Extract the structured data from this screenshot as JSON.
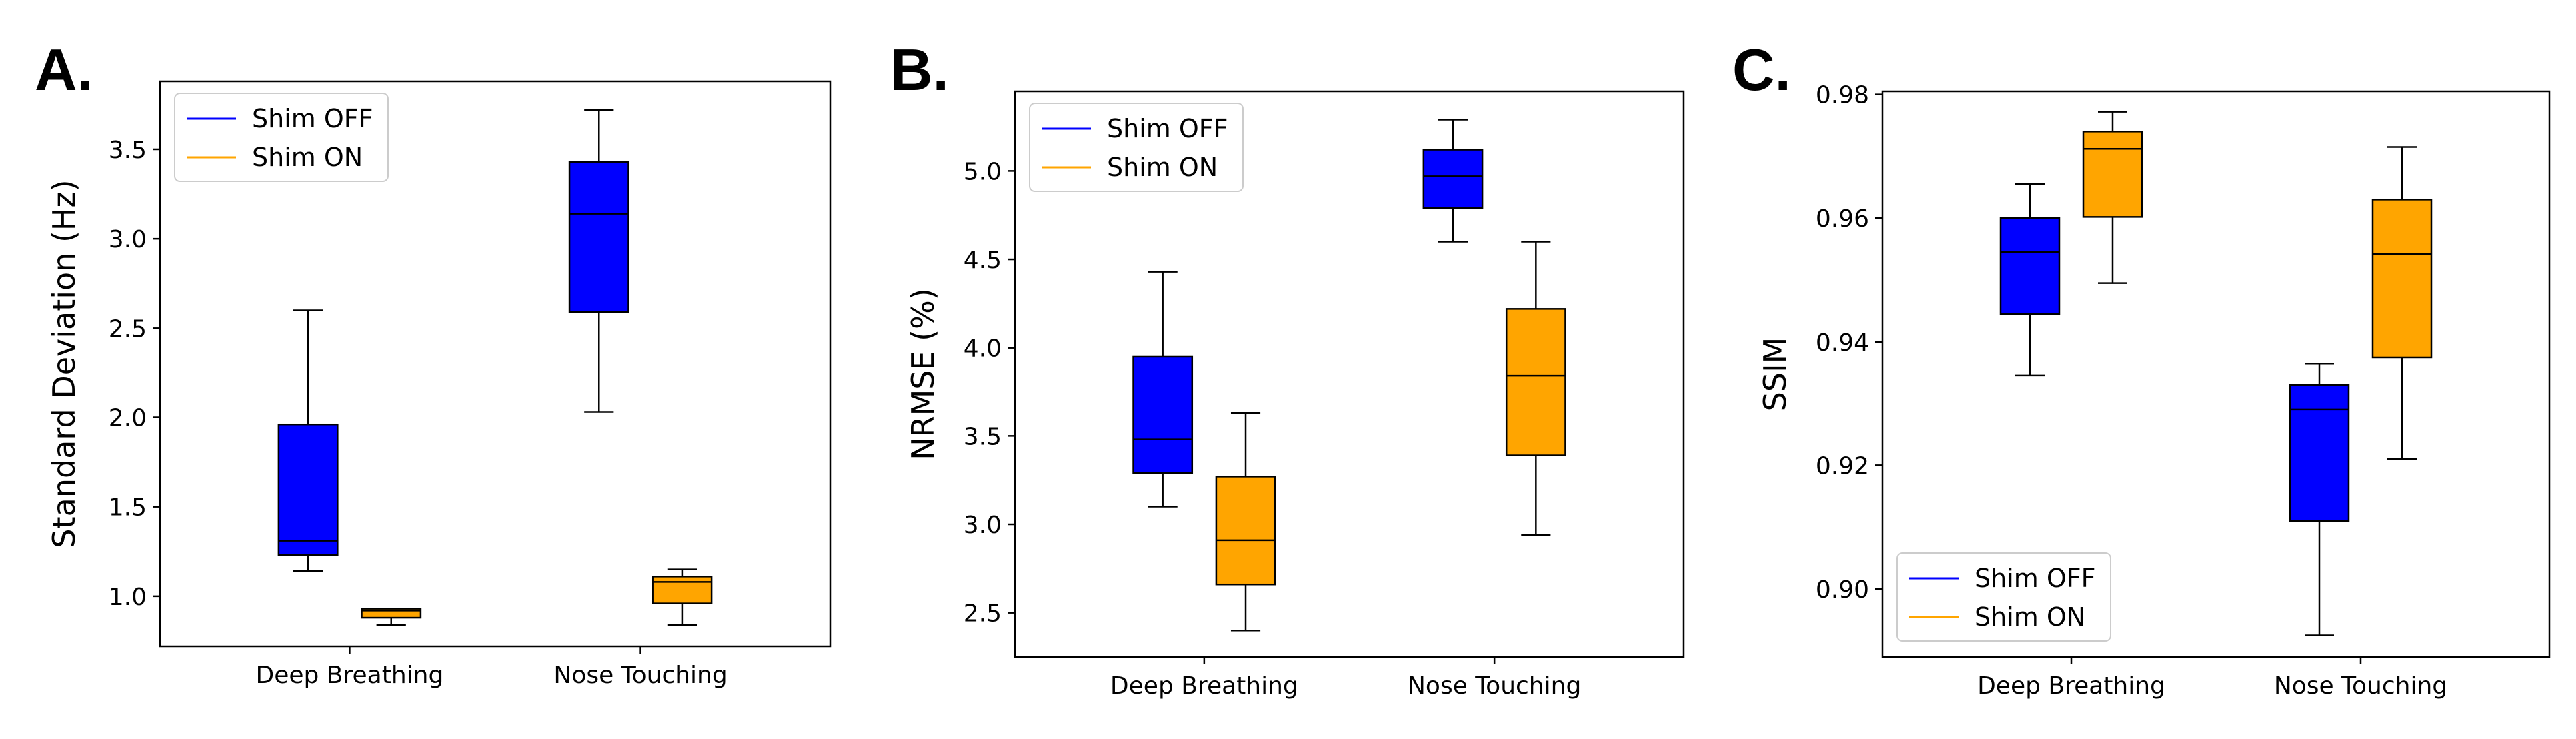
{
  "colors": {
    "shim_off": "#0000ff",
    "shim_on": "#ffa500"
  },
  "chart_data": [
    {
      "type": "box",
      "panel_label": "A.",
      "title": "",
      "xlabel": "",
      "ylabel": "Standard Deviation (Hz)",
      "categories": [
        "Deep Breathing",
        "Nose Touching"
      ],
      "ylim": [
        0.72,
        3.88
      ],
      "yticks": [
        1.0,
        1.5,
        2.0,
        2.5,
        3.0,
        3.5
      ],
      "legend": {
        "location": "upper-left",
        "entries": [
          "Shim OFF",
          "Shim ON"
        ]
      },
      "series": [
        {
          "name": "Shim OFF",
          "boxes": [
            {
              "whislo": 1.14,
              "q1": 1.23,
              "med": 1.31,
              "q3": 1.96,
              "whishi": 2.6
            },
            {
              "whislo": 2.03,
              "q1": 2.59,
              "med": 3.14,
              "q3": 3.43,
              "whishi": 3.72
            }
          ]
        },
        {
          "name": "Shim ON",
          "boxes": [
            {
              "whislo": 0.84,
              "q1": 0.88,
              "med": 0.92,
              "q3": 0.93,
              "whishi": 0.93
            },
            {
              "whislo": 0.84,
              "q1": 0.96,
              "med": 1.08,
              "q3": 1.11,
              "whishi": 1.15
            }
          ]
        }
      ]
    },
    {
      "type": "box",
      "panel_label": "B.",
      "title": "",
      "xlabel": "",
      "ylabel": "NRMSE (%)",
      "categories": [
        "Deep Breathing",
        "Nose Touching"
      ],
      "ylim": [
        2.25,
        5.45
      ],
      "yticks": [
        2.5,
        3.0,
        3.5,
        4.0,
        4.5,
        5.0
      ],
      "legend": {
        "location": "upper-left",
        "entries": [
          "Shim OFF",
          "Shim ON"
        ]
      },
      "series": [
        {
          "name": "Shim OFF",
          "boxes": [
            {
              "whislo": 3.1,
              "q1": 3.29,
              "med": 3.48,
              "q3": 3.95,
              "whishi": 4.43
            },
            {
              "whislo": 4.6,
              "q1": 4.79,
              "med": 4.97,
              "q3": 5.12,
              "whishi": 5.29
            }
          ]
        },
        {
          "name": "Shim ON",
          "boxes": [
            {
              "whislo": 2.4,
              "q1": 2.66,
              "med": 2.91,
              "q3": 3.27,
              "whishi": 3.63
            },
            {
              "whislo": 2.94,
              "q1": 3.39,
              "med": 3.84,
              "q3": 4.22,
              "whishi": 4.6
            }
          ]
        }
      ]
    },
    {
      "type": "box",
      "panel_label": "C.",
      "title": "",
      "xlabel": "",
      "ylabel": "SSIM",
      "categories": [
        "Deep Breathing",
        "Nose Touching"
      ],
      "ylim": [
        0.889,
        0.9805
      ],
      "yticks": [
        0.9,
        0.92,
        0.94,
        0.96,
        0.98
      ],
      "legend": {
        "location": "lower-left",
        "entries": [
          "Shim OFF",
          "Shim ON"
        ]
      },
      "series": [
        {
          "name": "Shim OFF",
          "boxes": [
            {
              "whislo": 0.9345,
              "q1": 0.9445,
              "med": 0.9545,
              "q3": 0.96,
              "whishi": 0.9655
            },
            {
              "whislo": 0.8925,
              "q1": 0.911,
              "med": 0.929,
              "q3": 0.933,
              "whishi": 0.9365
            }
          ]
        },
        {
          "name": "Shim ON",
          "boxes": [
            {
              "whislo": 0.9495,
              "q1": 0.9602,
              "med": 0.9712,
              "q3": 0.974,
              "whishi": 0.9772
            },
            {
              "whislo": 0.921,
              "q1": 0.9375,
              "med": 0.9542,
              "q3": 0.963,
              "whishi": 0.9715
            }
          ]
        }
      ]
    }
  ]
}
